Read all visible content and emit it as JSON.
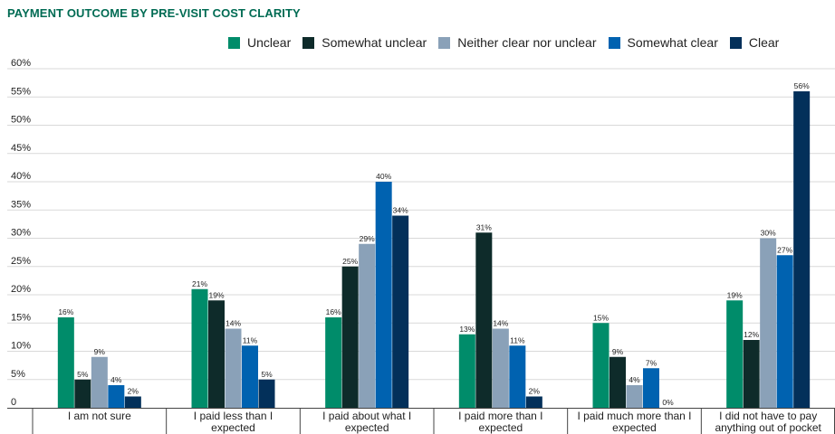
{
  "chart_data": {
    "type": "bar",
    "title": "PAYMENT OUTCOME BY PRE-VISIT COST CLARITY",
    "categories": [
      "I am not sure",
      "I paid less than I expected",
      "I paid about what I expected",
      "I paid more than I expected",
      "I paid much more than I expected",
      "I did not have to pay anything out of pocket"
    ],
    "category_lines": [
      [
        "I am not sure"
      ],
      [
        "I paid less than I",
        "expected"
      ],
      [
        "I paid about what I",
        "expected"
      ],
      [
        "I paid more than I",
        "expected"
      ],
      [
        "I paid much more than I",
        "expected"
      ],
      [
        "I did not have to pay",
        "anything out of pocket"
      ]
    ],
    "series": [
      {
        "name": "Unclear",
        "values": [
          16,
          21,
          16,
          13,
          15,
          19
        ],
        "color": "#008c6a"
      },
      {
        "name": "Somewhat unclear",
        "values": [
          5,
          19,
          25,
          31,
          9,
          12
        ],
        "color": "#0e2b2a"
      },
      {
        "name": "Neither clear nor unclear",
        "values": [
          9,
          14,
          29,
          14,
          4,
          30
        ],
        "color": "#8aa1b8"
      },
      {
        "name": "Somewhat clear",
        "values": [
          4,
          11,
          40,
          11,
          7,
          27
        ],
        "color": "#0062b0"
      },
      {
        "name": "Clear",
        "values": [
          2,
          5,
          34,
          2,
          0,
          56
        ],
        "color": "#03305a"
      }
    ],
    "value_suffix": "%",
    "ylim": [
      0,
      60
    ],
    "y_ticks": [
      {
        "value": 0,
        "label": "0"
      },
      {
        "value": 5,
        "label": "5%"
      },
      {
        "value": 10,
        "label": "10%"
      },
      {
        "value": 15,
        "label": "15%"
      },
      {
        "value": 20,
        "label": "20%"
      },
      {
        "value": 25,
        "label": "25%"
      },
      {
        "value": 30,
        "label": "30%"
      },
      {
        "value": 35,
        "label": "35%"
      },
      {
        "value": 40,
        "label": "40%"
      },
      {
        "value": 45,
        "label": "45%"
      },
      {
        "value": 50,
        "label": "50%"
      },
      {
        "value": 55,
        "label": "55%"
      },
      {
        "value": 60,
        "label": "60%"
      }
    ],
    "grid": true,
    "legend_position": "top-right"
  }
}
